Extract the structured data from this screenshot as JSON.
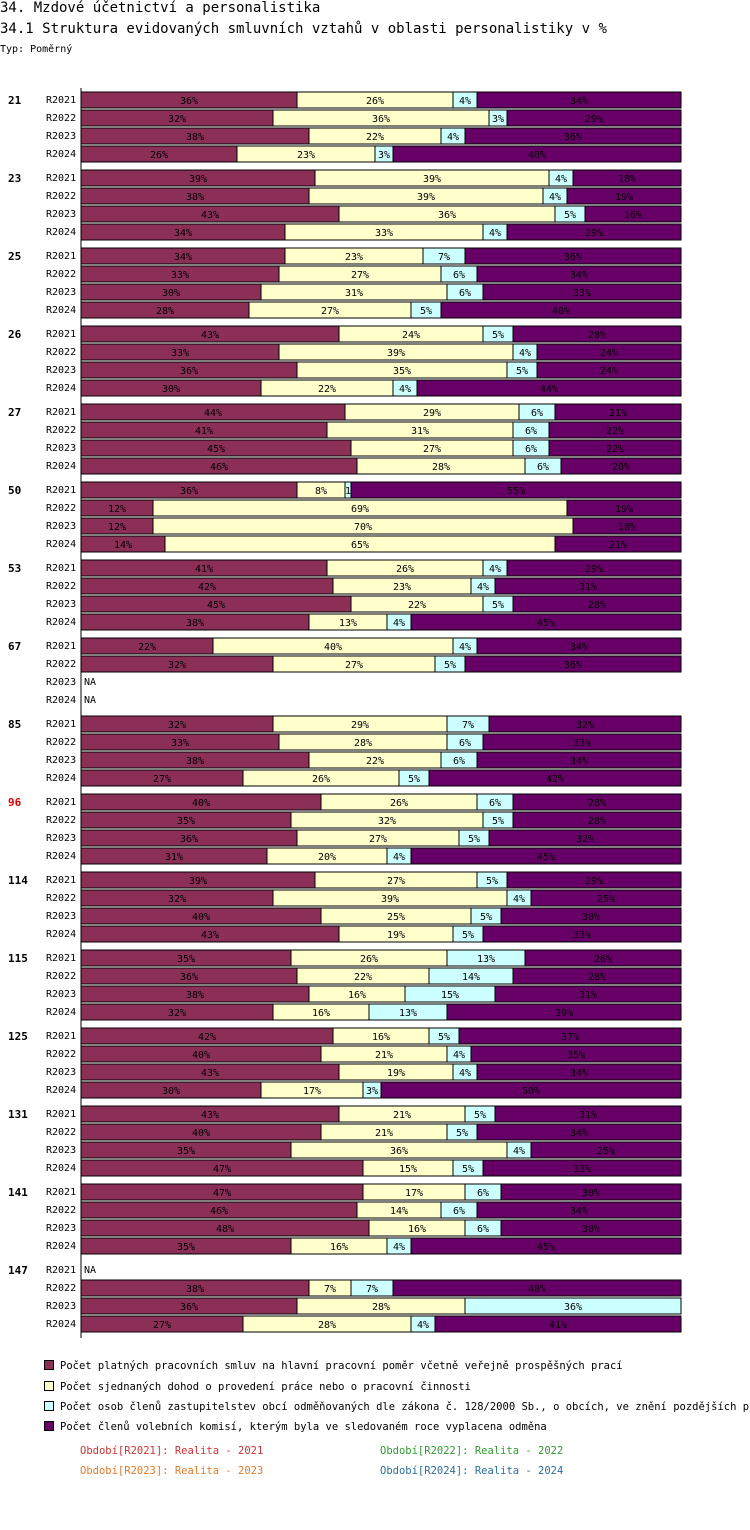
{
  "header": {
    "title": "34. Mzdové účetnictví a personalistika",
    "subtitle": "34.1 Struktura evidovaných smluvních vztahů v oblasti personalistiky v %",
    "type_label": "Typ: Poměrný"
  },
  "chart_data": {
    "type": "bar",
    "orientation": "horizontal",
    "stacked": true,
    "unit": "%",
    "xlim": [
      0,
      100
    ],
    "na_label": "NA",
    "series": [
      {
        "name": "Počet platných pracovních smluv na hlavní pracovní poměr včetně veřejně prospěšných prací",
        "color": "#8B2F57"
      },
      {
        "name": "Počet sjednaných dohod o provedení práce nebo o pracovní činnosti",
        "color": "#FFFFCC"
      },
      {
        "name": "Počet osob   členů zastupitelstev obcí odměňovaných dle zákona č. 128/2000 Sb., o obcích, ve znění pozdějších předp",
        "color": "#CCFFFF"
      },
      {
        "name": "Počet členů volebních komisí, kterým byla ve sledovaném roce vyplacena odměna",
        "color": "#660066"
      }
    ],
    "groups": [
      {
        "id": "21",
        "highlight": false,
        "rows": [
          {
            "period": "R2021",
            "values": [
              36,
              26,
              4,
              34
            ]
          },
          {
            "period": "R2022",
            "values": [
              32,
              36,
              3,
              29
            ]
          },
          {
            "period": "R2023",
            "values": [
              38,
              22,
              4,
              36
            ]
          },
          {
            "period": "R2024",
            "values": [
              26,
              23,
              3,
              48
            ]
          }
        ]
      },
      {
        "id": "23",
        "highlight": false,
        "rows": [
          {
            "period": "R2021",
            "values": [
              39,
              39,
              4,
              18
            ]
          },
          {
            "period": "R2022",
            "values": [
              38,
              39,
              4,
              19
            ]
          },
          {
            "period": "R2023",
            "values": [
              43,
              36,
              5,
              16
            ]
          },
          {
            "period": "R2024",
            "values": [
              34,
              33,
              4,
              29
            ]
          }
        ]
      },
      {
        "id": "25",
        "highlight": false,
        "rows": [
          {
            "period": "R2021",
            "values": [
              34,
              23,
              7,
              36
            ]
          },
          {
            "period": "R2022",
            "values": [
              33,
              27,
              6,
              34
            ]
          },
          {
            "period": "R2023",
            "values": [
              30,
              31,
              6,
              33
            ]
          },
          {
            "period": "R2024",
            "values": [
              28,
              27,
              5,
              40
            ]
          }
        ]
      },
      {
        "id": "26",
        "highlight": false,
        "rows": [
          {
            "period": "R2021",
            "values": [
              43,
              24,
              5,
              28
            ]
          },
          {
            "period": "R2022",
            "values": [
              33,
              39,
              4,
              24
            ]
          },
          {
            "period": "R2023",
            "values": [
              36,
              35,
              5,
              24
            ]
          },
          {
            "period": "R2024",
            "values": [
              30,
              22,
              4,
              44
            ]
          }
        ]
      },
      {
        "id": "27",
        "highlight": false,
        "rows": [
          {
            "period": "R2021",
            "values": [
              44,
              29,
              6,
              21
            ]
          },
          {
            "period": "R2022",
            "values": [
              41,
              31,
              6,
              22
            ]
          },
          {
            "period": "R2023",
            "values": [
              45,
              27,
              6,
              22
            ]
          },
          {
            "period": "R2024",
            "values": [
              46,
              28,
              6,
              20
            ]
          }
        ]
      },
      {
        "id": "50",
        "highlight": false,
        "rows": [
          {
            "period": "R2021",
            "values": [
              36,
              8,
              1,
              55
            ]
          },
          {
            "period": "R2022",
            "values": [
              12,
              69,
              0,
              19
            ]
          },
          {
            "period": "R2023",
            "values": [
              12,
              70,
              0,
              18
            ]
          },
          {
            "period": "R2024",
            "values": [
              14,
              65,
              0,
              21
            ]
          }
        ]
      },
      {
        "id": "53",
        "highlight": false,
        "rows": [
          {
            "period": "R2021",
            "values": [
              41,
              26,
              4,
              29
            ]
          },
          {
            "period": "R2022",
            "values": [
              42,
              23,
              4,
              31
            ]
          },
          {
            "period": "R2023",
            "values": [
              45,
              22,
              5,
              28
            ]
          },
          {
            "period": "R2024",
            "values": [
              38,
              13,
              4,
              45
            ]
          }
        ]
      },
      {
        "id": "67",
        "highlight": false,
        "rows": [
          {
            "period": "R2021",
            "values": [
              22,
              40,
              4,
              34
            ]
          },
          {
            "period": "R2022",
            "values": [
              32,
              27,
              5,
              36
            ]
          },
          {
            "period": "R2023",
            "values": null
          },
          {
            "period": "R2024",
            "values": null
          }
        ]
      },
      {
        "id": "85",
        "highlight": false,
        "rows": [
          {
            "period": "R2021",
            "values": [
              32,
              29,
              7,
              32
            ]
          },
          {
            "period": "R2022",
            "values": [
              33,
              28,
              6,
              33
            ]
          },
          {
            "period": "R2023",
            "values": [
              38,
              22,
              6,
              34
            ]
          },
          {
            "period": "R2024",
            "values": [
              27,
              26,
              5,
              42
            ]
          }
        ]
      },
      {
        "id": "96",
        "highlight": true,
        "rows": [
          {
            "period": "R2021",
            "values": [
              40,
              26,
              6,
              28
            ]
          },
          {
            "period": "R2022",
            "values": [
              35,
              32,
              5,
              28
            ]
          },
          {
            "period": "R2023",
            "values": [
              36,
              27,
              5,
              32
            ]
          },
          {
            "period": "R2024",
            "values": [
              31,
              20,
              4,
              45
            ]
          }
        ]
      },
      {
        "id": "114",
        "highlight": false,
        "rows": [
          {
            "period": "R2021",
            "values": [
              39,
              27,
              5,
              29
            ]
          },
          {
            "period": "R2022",
            "values": [
              32,
              39,
              4,
              25
            ]
          },
          {
            "period": "R2023",
            "values": [
              40,
              25,
              5,
              30
            ]
          },
          {
            "period": "R2024",
            "values": [
              43,
              19,
              5,
              33
            ]
          }
        ]
      },
      {
        "id": "115",
        "highlight": false,
        "rows": [
          {
            "period": "R2021",
            "values": [
              35,
              26,
              13,
              26
            ]
          },
          {
            "period": "R2022",
            "values": [
              36,
              22,
              14,
              28
            ]
          },
          {
            "period": "R2023",
            "values": [
              38,
              16,
              15,
              31
            ]
          },
          {
            "period": "R2024",
            "values": [
              32,
              16,
              13,
              39
            ]
          }
        ]
      },
      {
        "id": "125",
        "highlight": false,
        "rows": [
          {
            "period": "R2021",
            "values": [
              42,
              16,
              5,
              37
            ]
          },
          {
            "period": "R2022",
            "values": [
              40,
              21,
              4,
              35
            ]
          },
          {
            "period": "R2023",
            "values": [
              43,
              19,
              4,
              34
            ]
          },
          {
            "period": "R2024",
            "values": [
              30,
              17,
              3,
              50
            ]
          }
        ]
      },
      {
        "id": "131",
        "highlight": false,
        "rows": [
          {
            "period": "R2021",
            "values": [
              43,
              21,
              5,
              31
            ]
          },
          {
            "period": "R2022",
            "values": [
              40,
              21,
              5,
              34
            ]
          },
          {
            "period": "R2023",
            "values": [
              35,
              36,
              4,
              25
            ]
          },
          {
            "period": "R2024",
            "values": [
              47,
              15,
              5,
              33
            ]
          }
        ]
      },
      {
        "id": "141",
        "highlight": false,
        "rows": [
          {
            "period": "R2021",
            "values": [
              47,
              17,
              6,
              30
            ]
          },
          {
            "period": "R2022",
            "values": [
              46,
              14,
              6,
              34
            ]
          },
          {
            "period": "R2023",
            "values": [
              48,
              16,
              6,
              30
            ]
          },
          {
            "period": "R2024",
            "values": [
              35,
              16,
              4,
              45
            ]
          }
        ]
      },
      {
        "id": "147",
        "highlight": false,
        "rows": [
          {
            "period": "R2021",
            "values": null
          },
          {
            "period": "R2022",
            "values": [
              38,
              7,
              7,
              48
            ]
          },
          {
            "period": "R2023",
            "values": [
              36,
              28,
              36,
              0
            ]
          },
          {
            "period": "R2024",
            "values": [
              27,
              28,
              4,
              41
            ]
          }
        ]
      }
    ]
  },
  "periods_legend": [
    {
      "text": "Období[R2021]: Realita - 2021",
      "color": "#CC3333"
    },
    {
      "text": "Období[R2022]: Realita - 2022",
      "color": "#339933"
    },
    {
      "text": "Období[R2023]: Realita - 2023",
      "color": "#E07B2A"
    },
    {
      "text": "Období[R2024]: Realita - 2024",
      "color": "#2A6E9E"
    }
  ]
}
